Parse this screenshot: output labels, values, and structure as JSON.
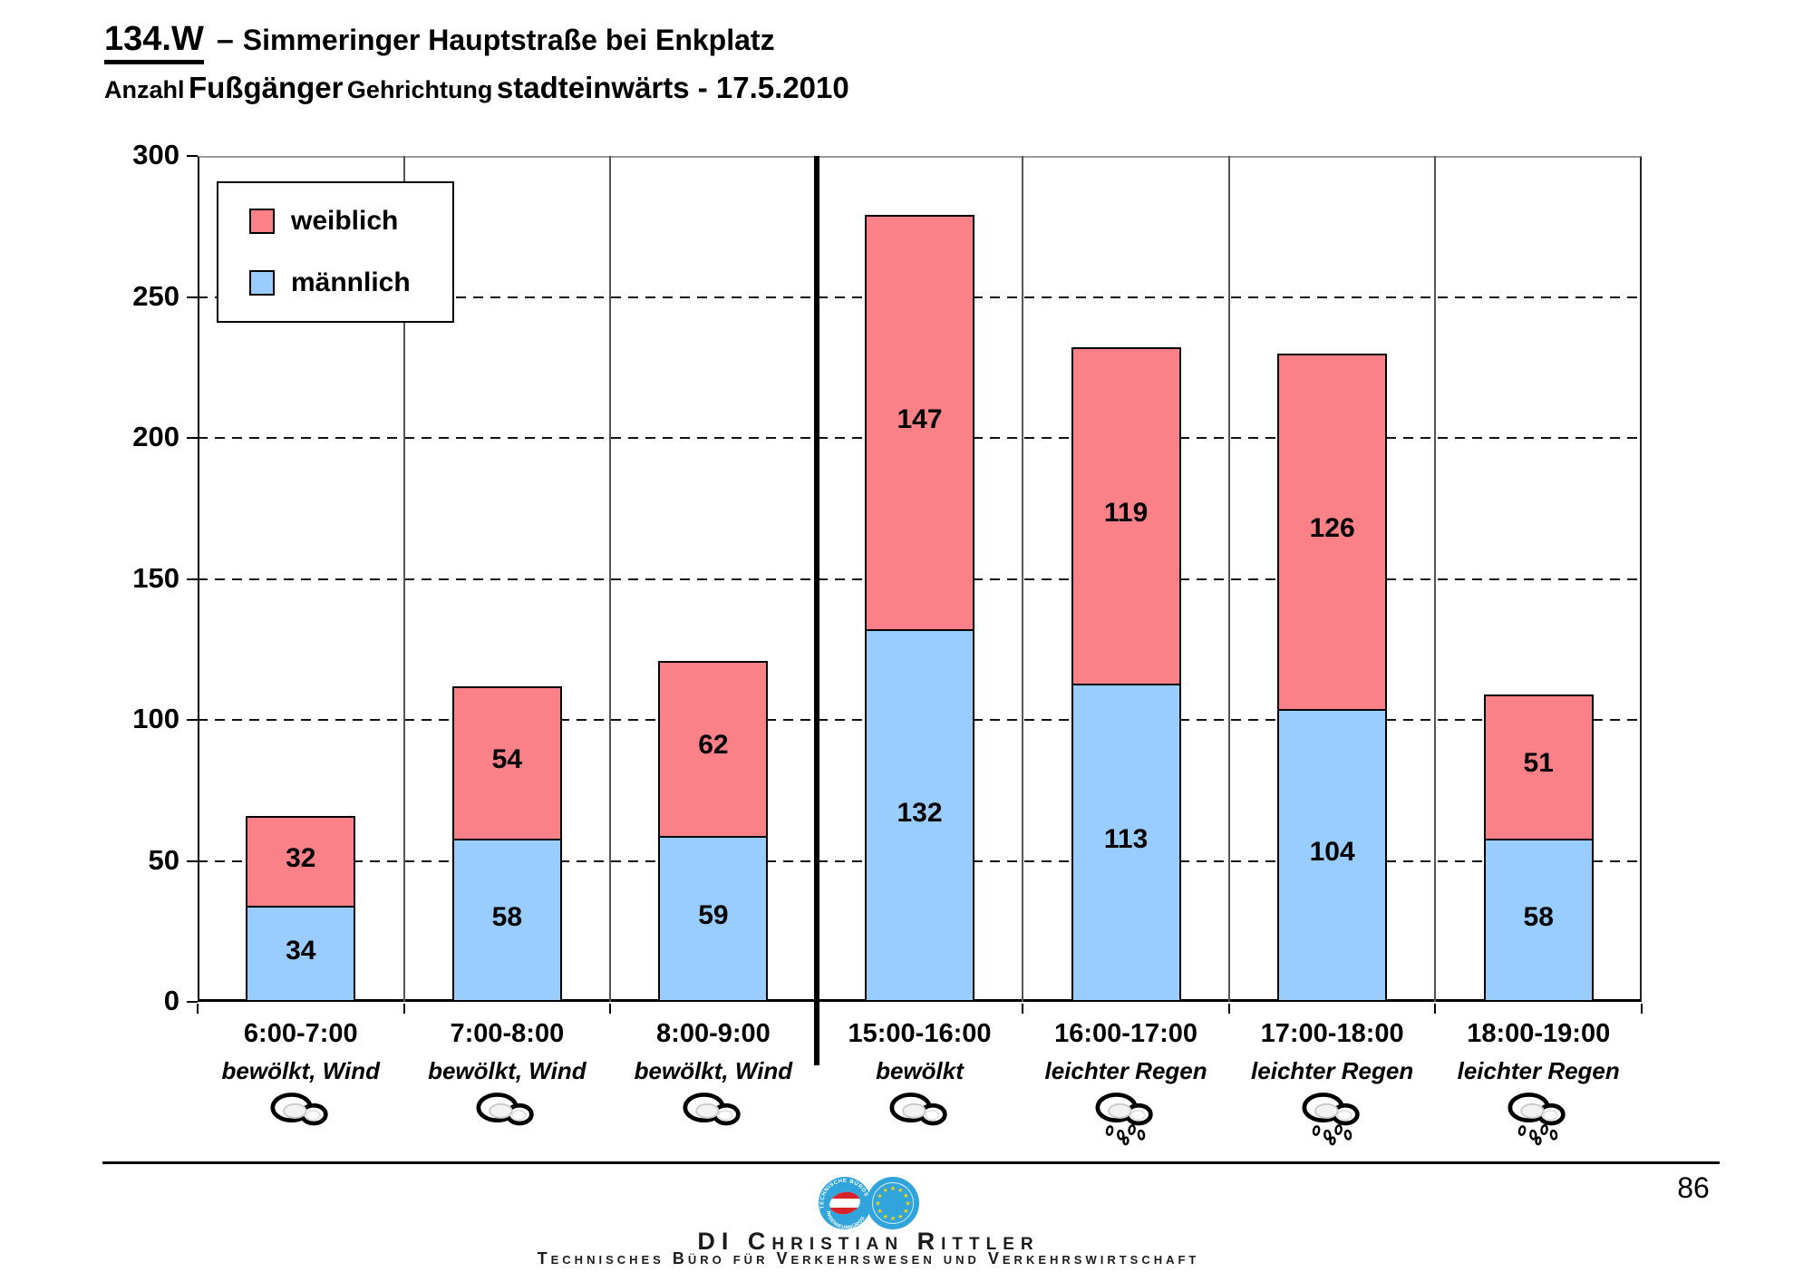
{
  "header": {
    "code": "134.W",
    "separator": "–",
    "location": "Simmeringer Hauptstraße bei Enkplatz",
    "sub_anzahl": "Anzahl",
    "sub_fussgaenger": "Fußgänger",
    "sub_gehrichtung": "Gehrichtung",
    "sub_rest": "stadteinwärts - 17.5.2010"
  },
  "legend": {
    "items": [
      {
        "label": "weiblich",
        "color": "#FA8187"
      },
      {
        "label": "männlich",
        "color": "#99CCFF"
      }
    ]
  },
  "chart_data": {
    "type": "bar",
    "stacked": true,
    "title": "134.W – Simmeringer Hauptstraße bei Enkplatz",
    "subtitle": "Anzahl Fußgänger Gehrichtung stadteinwärts - 17.5.2010",
    "categories": [
      "6:00-7:00",
      "7:00-8:00",
      "8:00-9:00",
      "15:00-16:00",
      "16:00-17:00",
      "17:00-18:00",
      "18:00-19:00"
    ],
    "weather": [
      "bewölkt, Wind",
      "bewölkt, Wind",
      "bewölkt, Wind",
      "bewölkt",
      "leichter Regen",
      "leichter Regen",
      "leichter Regen"
    ],
    "weather_icons": [
      "cloud",
      "cloud",
      "cloud",
      "cloud",
      "rain",
      "rain",
      "rain"
    ],
    "series": [
      {
        "name": "männlich",
        "color": "#99CCFF",
        "values": [
          34,
          58,
          59,
          132,
          113,
          104,
          58
        ]
      },
      {
        "name": "weiblich",
        "color": "#FA8187",
        "values": [
          32,
          54,
          62,
          147,
          119,
          126,
          51
        ]
      }
    ],
    "totals": [
      66,
      112,
      121,
      279,
      232,
      230,
      109
    ],
    "ylim": [
      0,
      300
    ],
    "ytick_interval": 50,
    "grid": "dashed-horizontal",
    "legend_position": "top-left-inside",
    "separator_after_category_index": 2
  },
  "footer": {
    "page_number": "86",
    "name_line": "DI Christian Rittler",
    "office_line": "Technisches Büro für Verkehrswesen und Verkehrswirtschaft",
    "logo": {
      "left_circle_text_top": "TECHNISCHE BÜROS",
      "left_circle_text_bottom": "INGENIEURBÜROS",
      "blue": "#31A5DB",
      "flag_red": "#D8232A",
      "star_yellow": "#FFD500"
    }
  }
}
